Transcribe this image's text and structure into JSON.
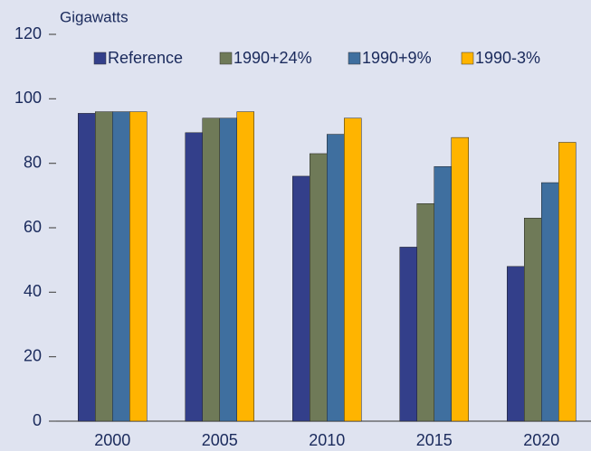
{
  "chart_data": {
    "type": "bar",
    "y_axis_label": "Gigawatts",
    "categories": [
      "2000",
      "2005",
      "2010",
      "2015",
      "2020"
    ],
    "series": [
      {
        "name": "Reference",
        "color": "#333f8a",
        "values": [
          95.5,
          89.5,
          76,
          54,
          48
        ]
      },
      {
        "name": "1990+24%",
        "color": "#6f7a58",
        "values": [
          96,
          94,
          83,
          67.5,
          63
        ]
      },
      {
        "name": "1990+9%",
        "color": "#3f6f9f",
        "values": [
          96,
          94,
          89,
          79,
          74
        ]
      },
      {
        "name": "1990-3%",
        "color": "#ffb400",
        "values": [
          96,
          96,
          94,
          88,
          86.5
        ]
      }
    ],
    "ylim": [
      0,
      120
    ],
    "yticks": [
      0,
      20,
      40,
      60,
      80,
      100,
      120
    ]
  }
}
